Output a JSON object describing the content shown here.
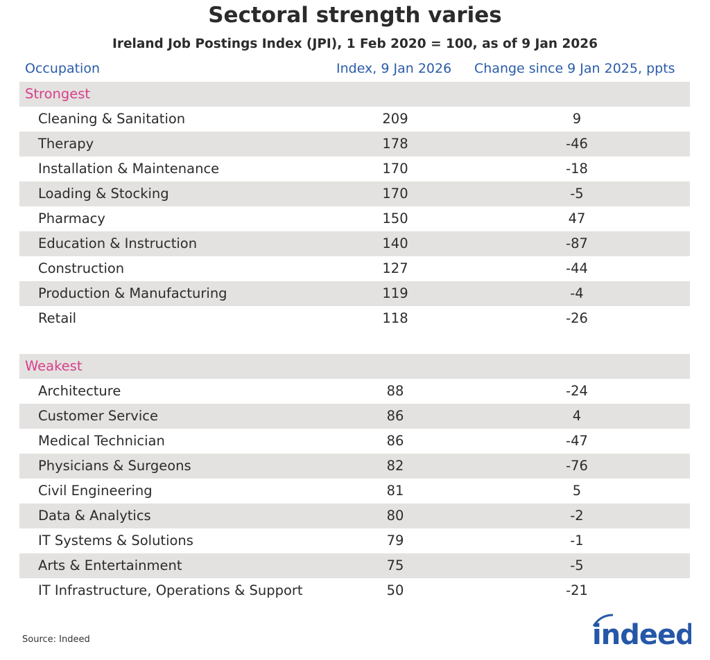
{
  "title": "Sectoral strength varies",
  "subtitle": "Ireland Job Postings Index (JPI), 1 Feb 2020 = 100, as of 9 Jan 2026",
  "chart_data": {
    "type": "table",
    "columns": [
      "Occupation",
      "Index, 9 Jan 2026",
      "Change since 9 Jan 2025, ppts"
    ],
    "sections": [
      {
        "label": "Strongest",
        "rows": [
          [
            "Cleaning & Sanitation",
            "209",
            "9"
          ],
          [
            "Therapy",
            "178",
            "-46"
          ],
          [
            "Installation & Maintenance",
            "170",
            "-18"
          ],
          [
            "Loading & Stocking",
            "170",
            "-5"
          ],
          [
            "Pharmacy",
            "150",
            "47"
          ],
          [
            "Education & Instruction",
            "140",
            "-87"
          ],
          [
            "Construction",
            "127",
            "-44"
          ],
          [
            "Production & Manufacturing",
            "119",
            "-4"
          ],
          [
            "Retail",
            "118",
            "-26"
          ]
        ]
      },
      {
        "label": "Weakest",
        "rows": [
          [
            "Architecture",
            "88",
            "-24"
          ],
          [
            "Customer Service",
            "86",
            "4"
          ],
          [
            "Medical Technician",
            "86",
            "-47"
          ],
          [
            "Physicians & Surgeons",
            "82",
            "-76"
          ],
          [
            "Civil Engineering",
            "81",
            "5"
          ],
          [
            "Data & Analytics",
            "80",
            "-2"
          ],
          [
            "IT Systems & Solutions",
            "79",
            "-1"
          ],
          [
            "Arts & Entertainment",
            "75",
            "-5"
          ],
          [
            "IT Infrastructure, Operations & Support",
            "50",
            "-21"
          ]
        ]
      }
    ]
  },
  "source": "Source: Indeed",
  "logo": {
    "text": "indeed",
    "color": "#2557a7"
  },
  "colors": {
    "header": "#2a5caa",
    "section": "#d6408a",
    "band": "#e4e2e0"
  }
}
